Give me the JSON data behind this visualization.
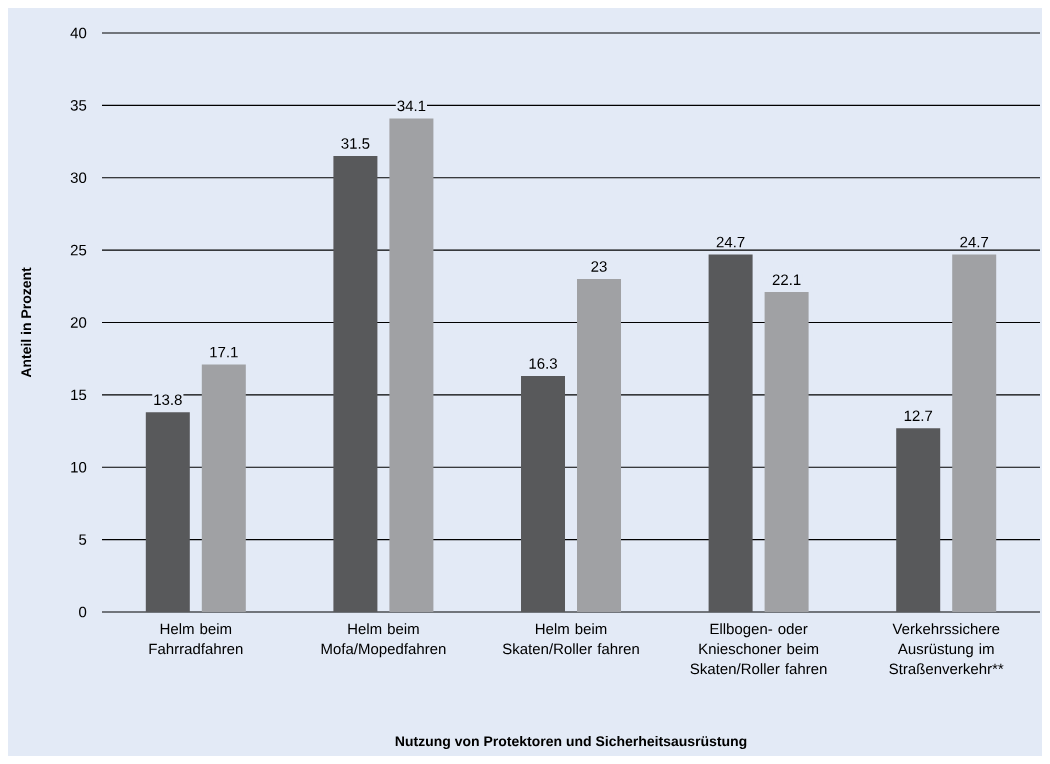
{
  "chart_data": {
    "type": "bar",
    "xlabel": "Nutzung von Protektoren und Sicherheitsausrüstung",
    "ylabel": "Anteil in Prozent",
    "categories": [
      "Helm beim Fahrradfahren",
      "Helm beim Mofa/Mopedfahren",
      "Helm beim Skaten/Roller fahren",
      "Ellbogen- oder Knieschoner beim Skaten/Roller fahren",
      "Verkehrssichere Ausrüstung im Straßenverkehr**"
    ],
    "series": [
      {
        "color": "#58595b",
        "values": [
          13.8,
          31.5,
          16.3,
          24.7,
          12.7
        ]
      },
      {
        "color": "#a0a1a4",
        "values": [
          17.1,
          34.1,
          23,
          22.1,
          24.7
        ]
      }
    ],
    "ylim": [
      0,
      40
    ],
    "yticks": [
      0,
      5,
      10,
      15,
      20,
      25,
      30,
      35,
      40
    ],
    "grid": "y",
    "data_labels": true
  }
}
